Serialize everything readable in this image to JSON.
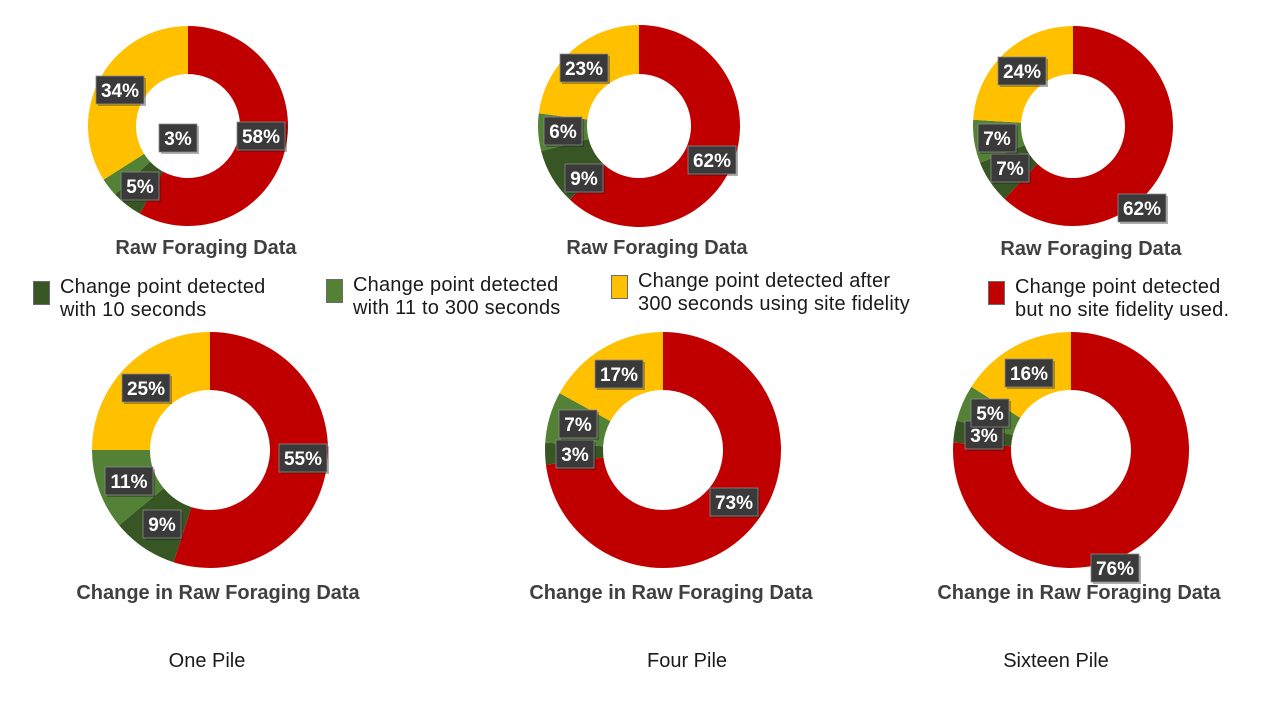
{
  "colors": {
    "within_10": "#375623",
    "within_11_300": "#538135",
    "after_300": "#FFC000",
    "no_site_fidelity": "#C00000",
    "label_box": "#3a3a3a",
    "label_text": "#ffffff",
    "title_text": "#404040"
  },
  "legend": [
    {
      "key": "within_10",
      "label": "Change point detected\nwith 10 seconds"
    },
    {
      "key": "within_11_300",
      "label": "Change point detected\nwith 11 to 300 seconds"
    },
    {
      "key": "after_300",
      "label": "Change point detected after\n300 seconds using site fidelity"
    },
    {
      "key": "no_site_fidelity",
      "label": "Change point detected\nbut no site fidelity used."
    }
  ],
  "group_labels": [
    "One Pile",
    "Four Pile",
    "Sixteen Pile"
  ],
  "chart_data": [
    {
      "type": "pie",
      "title": "Raw Foraging Data",
      "group": "One Pile",
      "slices": [
        {
          "key": "no_site_fidelity",
          "value": 58,
          "label": "58%"
        },
        {
          "key": "within_10",
          "value": 5,
          "label": "5%"
        },
        {
          "key": "within_11_300",
          "value": 3,
          "label": "3%"
        },
        {
          "key": "after_300",
          "value": 34,
          "label": "34%"
        }
      ]
    },
    {
      "type": "pie",
      "title": "Raw Foraging Data",
      "group": "Four Pile",
      "slices": [
        {
          "key": "no_site_fidelity",
          "value": 62,
          "label": "62%"
        },
        {
          "key": "within_10",
          "value": 9,
          "label": "9%"
        },
        {
          "key": "within_11_300",
          "value": 6,
          "label": "6%"
        },
        {
          "key": "after_300",
          "value": 23,
          "label": "23%"
        }
      ]
    },
    {
      "type": "pie",
      "title": "Raw Foraging Data",
      "group": "Sixteen Pile",
      "slices": [
        {
          "key": "no_site_fidelity",
          "value": 62,
          "label": "62%"
        },
        {
          "key": "within_10",
          "value": 7,
          "label": "7%"
        },
        {
          "key": "within_11_300",
          "value": 7,
          "label": "7%"
        },
        {
          "key": "after_300",
          "value": 24,
          "label": "24%"
        }
      ]
    },
    {
      "type": "pie",
      "title": "Change in Raw Foraging Data",
      "group": "One Pile",
      "slices": [
        {
          "key": "no_site_fidelity",
          "value": 55,
          "label": "55%"
        },
        {
          "key": "within_10",
          "value": 9,
          "label": "9%"
        },
        {
          "key": "within_11_300",
          "value": 11,
          "label": "11%"
        },
        {
          "key": "after_300",
          "value": 25,
          "label": "25%"
        }
      ]
    },
    {
      "type": "pie",
      "title": "Change in Raw Foraging Data",
      "group": "Four Pile",
      "slices": [
        {
          "key": "no_site_fidelity",
          "value": 73,
          "label": "73%"
        },
        {
          "key": "within_10",
          "value": 3,
          "label": "3%"
        },
        {
          "key": "within_11_300",
          "value": 7,
          "label": "7%"
        },
        {
          "key": "after_300",
          "value": 17,
          "label": "17%"
        }
      ]
    },
    {
      "type": "pie",
      "title": "Change in Raw Foraging Data",
      "group": "Sixteen Pile",
      "slices": [
        {
          "key": "no_site_fidelity",
          "value": 76,
          "label": "76%"
        },
        {
          "key": "within_10",
          "value": 3,
          "label": "3%"
        },
        {
          "key": "within_11_300",
          "value": 5,
          "label": "5%"
        },
        {
          "key": "after_300",
          "value": 16,
          "label": "16%"
        }
      ]
    }
  ]
}
